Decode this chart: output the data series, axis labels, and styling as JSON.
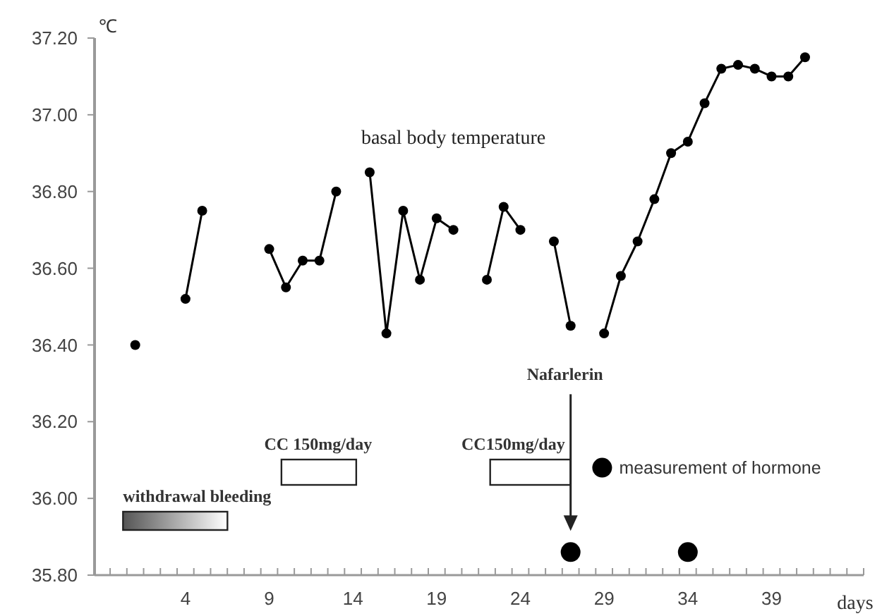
{
  "chart_data": {
    "type": "line",
    "xlabel": "days",
    "ylabel": "℃",
    "xlim": [
      -1.43,
      44.5
    ],
    "ylim": [
      35.8,
      37.2
    ],
    "xticks": [
      4,
      9,
      14,
      19,
      24,
      29,
      34,
      39,
      {
        "value": -0.5,
        "label": null
      },
      {
        "value": 0.5,
        "label": null
      },
      {
        "value": 1.5,
        "label": null
      },
      {
        "value": 2.5,
        "label": null
      },
      {
        "value": 3.5,
        "label": null
      },
      {
        "value": 4.5,
        "label": null
      },
      {
        "value": 5.5,
        "label": null
      },
      {
        "value": 6.5,
        "label": null
      },
      {
        "value": 7.5,
        "label": null
      },
      {
        "value": 8.5,
        "label": null
      },
      {
        "value": 9.5,
        "label": null
      },
      {
        "value": 10.5,
        "label": null
      },
      {
        "value": 11.5,
        "label": null
      },
      {
        "value": 12.5,
        "label": null
      },
      {
        "value": 13.5,
        "label": null
      },
      {
        "value": 14.5,
        "label": null
      },
      {
        "value": 15.5,
        "label": null
      },
      {
        "value": 16.5,
        "label": null
      },
      {
        "value": 17.5,
        "label": null
      },
      {
        "value": 18.5,
        "label": null
      },
      {
        "value": 19.5,
        "label": null
      },
      {
        "value": 20.5,
        "label": null
      },
      {
        "value": 21.5,
        "label": null
      },
      {
        "value": 22.5,
        "label": null
      },
      {
        "value": 23.5,
        "label": null
      },
      {
        "value": 24.5,
        "label": null
      },
      {
        "value": 25.5,
        "label": null
      },
      {
        "value": 26.5,
        "label": null
      },
      {
        "value": 27.5,
        "label": null
      },
      {
        "value": 28.5,
        "label": null
      },
      {
        "value": 29.5,
        "label": null
      },
      {
        "value": 30.5,
        "label": null
      },
      {
        "value": 31.5,
        "label": null
      },
      {
        "value": 32.5,
        "label": null
      },
      {
        "value": 33.5,
        "label": null
      },
      {
        "value": 34.5,
        "label": null
      },
      {
        "value": 35.5,
        "label": null
      },
      {
        "value": 36.5,
        "label": null
      },
      {
        "value": 37.5,
        "label": null
      },
      {
        "value": 38.5,
        "label": null
      },
      {
        "value": 39.5,
        "label": null
      },
      {
        "value": 40.5,
        "label": null
      },
      {
        "value": 41.5,
        "label": null
      },
      {
        "value": 42.5,
        "label": null
      },
      {
        "value": 43.5,
        "label": null
      },
      {
        "value": 44.5,
        "label": null
      }
    ],
    "yticks": [
      {
        "value": 35.8,
        "label": "35.80"
      },
      {
        "value": 36,
        "label": "36.00"
      },
      {
        "value": 36.2,
        "label": "36.20"
      },
      {
        "value": 36.4,
        "label": "36.40"
      },
      {
        "value": 36.6,
        "label": "36.60"
      },
      {
        "value": 36.8,
        "label": "36.80"
      },
      {
        "value": 37,
        "label": "37.00"
      },
      {
        "value": 37.2,
        "label": "37.20"
      }
    ],
    "x": [
      1,
      2,
      3,
      4,
      5,
      6,
      7,
      8,
      9,
      10,
      11,
      12,
      13,
      14,
      15,
      16,
      17,
      18,
      19,
      20,
      21,
      22,
      23,
      24,
      25,
      26,
      27,
      28,
      29,
      30,
      31,
      32,
      33,
      34,
      35,
      36,
      37,
      38,
      39,
      40,
      41
    ],
    "series": [
      {
        "name": "basal body temperature",
        "color": "#000000",
        "marker": "circle",
        "values": [
          36.4,
          null,
          null,
          36.52,
          36.75,
          null,
          null,
          null,
          36.65,
          36.55,
          36.62,
          36.62,
          36.8,
          null,
          36.85,
          36.43,
          36.75,
          36.57,
          36.73,
          36.7,
          null,
          36.57,
          36.76,
          36.7,
          null,
          36.67,
          36.45,
          null,
          36.43,
          36.58,
          36.67,
          36.78,
          36.9,
          36.93,
          37.03,
          37.12,
          37.13,
          37.12,
          37.1,
          37.1,
          37.15
        ]
      },
      {
        "name": "measurement of hormone",
        "type": "scatter",
        "color": "#000000",
        "marker": "circle",
        "x": [
          27,
          34
        ],
        "values": [
          35.86,
          35.86
        ]
      }
    ],
    "annotations": [
      "withdrawal bleeding",
      "CC 150mg/day",
      "CC150mg/day",
      "Nafarlerin"
    ],
    "legend": "right",
    "grid": false,
    "line_style": "solid"
  }
}
